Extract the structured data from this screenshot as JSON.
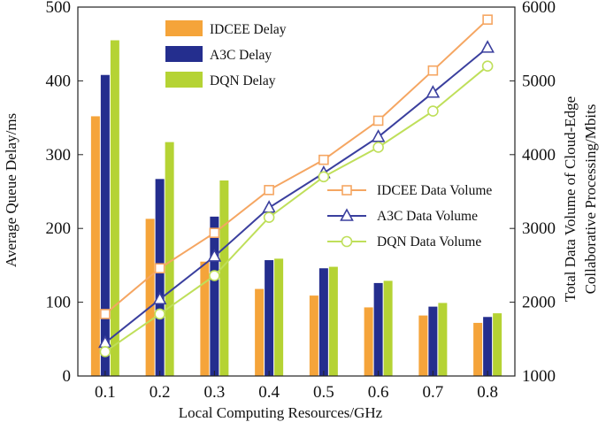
{
  "chart_data": {
    "type": "bar+line",
    "categories": [
      "0.1",
      "0.2",
      "0.3",
      "0.4",
      "0.5",
      "0.6",
      "0.7",
      "0.8"
    ],
    "xlabel": "Local Computing Resources/GHz",
    "ylabel": "Average Queue Delay/ms",
    "y2label_line1": "Total Data Volume of Cloud-Edge",
    "y2label_line2": "Collaborative Processing/Mbits",
    "ylim": [
      0,
      500
    ],
    "yticks": [
      0,
      100,
      200,
      300,
      400,
      500
    ],
    "y2lim": [
      1000,
      6000
    ],
    "y2ticks": [
      1000,
      2000,
      3000,
      4000,
      5000,
      6000
    ],
    "bar_series": [
      {
        "name": "IDCEE Delay",
        "color": "#F5A43A",
        "values": [
          352,
          213,
          155,
          118,
          109,
          93,
          82,
          72
        ]
      },
      {
        "name": "A3C Delay",
        "color": "#242E8E",
        "values": [
          408,
          267,
          216,
          157,
          146,
          126,
          94,
          80
        ]
      },
      {
        "name": "DQN Delay",
        "color": "#B5D334",
        "values": [
          455,
          317,
          265,
          159,
          148,
          129,
          99,
          85
        ]
      }
    ],
    "line_series": [
      {
        "name": "IDCEE Data Volume",
        "color": "#F5A662",
        "marker": "square",
        "values": [
          1840,
          2460,
          2940,
          3520,
          3930,
          4460,
          5140,
          5830
        ]
      },
      {
        "name": "A3C Data Volume",
        "color": "#3A3F9E",
        "marker": "triangle",
        "values": [
          1450,
          2040,
          2620,
          3280,
          3750,
          4240,
          4840,
          5450
        ]
      },
      {
        "name": "DQN Data Volume",
        "color": "#BFDF5A",
        "marker": "circle",
        "values": [
          1330,
          1840,
          2360,
          3150,
          3700,
          4100,
          4590,
          5200
        ]
      }
    ],
    "legend_bars_position": "top-center",
    "legend_lines_position": "center-right",
    "grid": false
  }
}
